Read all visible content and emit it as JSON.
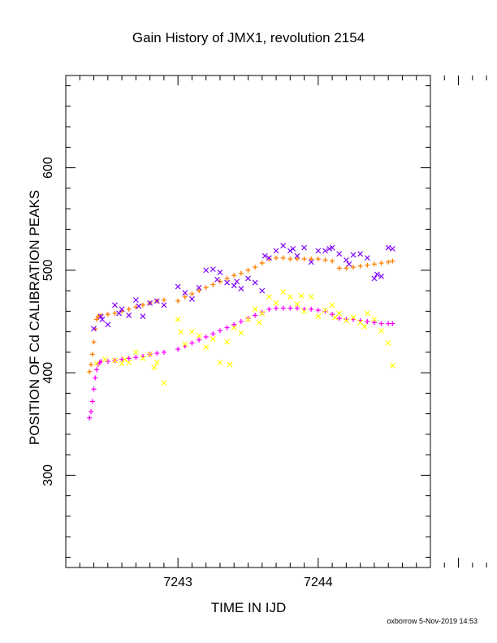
{
  "chart_data": {
    "type": "scatter",
    "title": "Gain History of JMX1, revolution 2154",
    "xlabel": "TIME IN IJD",
    "ylabel": "POSITION OF Cd CALIBRATION PEAKS",
    "xlim": [
      7242.2,
      7244.8
    ],
    "ylim": [
      210,
      690
    ],
    "x_ticks": [
      7243,
      7244
    ],
    "x_tick_labels": [
      "7243",
      "7244"
    ],
    "y_ticks": [
      300,
      400,
      500,
      600
    ],
    "y_tick_labels": [
      "300",
      "400",
      "500",
      "600"
    ],
    "grid": false,
    "legend": "none",
    "footer": "oxborrow  5-Nov-2019 14:53",
    "series": [
      {
        "color": "#ff7f00",
        "marker": "plus",
        "x": [
          7242.37,
          7242.38,
          7242.39,
          7242.4,
          7242.41,
          7242.42,
          7242.43,
          7242.45,
          7242.5,
          7242.55,
          7242.6,
          7242.65,
          7242.7,
          7242.75,
          7242.8,
          7242.85,
          7242.9,
          7243.0,
          7243.05,
          7243.1,
          7243.15,
          7243.2,
          7243.25,
          7243.3,
          7243.35,
          7243.4,
          7243.45,
          7243.5,
          7243.55,
          7243.6,
          7243.65,
          7243.7,
          7243.75,
          7243.8,
          7243.85,
          7243.9,
          7243.95,
          7244.0,
          7244.05,
          7244.1,
          7244.15,
          7244.2,
          7244.25,
          7244.3,
          7244.35,
          7244.4,
          7244.45,
          7244.5,
          7244.53
        ],
        "y": [
          401,
          408,
          418,
          430,
          443,
          452,
          455,
          456,
          457,
          458,
          460,
          462,
          464,
          466,
          468,
          470,
          471,
          470,
          474,
          477,
          480,
          483,
          486,
          489,
          492,
          495,
          497,
          500,
          503,
          507,
          511,
          512,
          512,
          511,
          511,
          511,
          511,
          511,
          510,
          509,
          502,
          502,
          503,
          504,
          505,
          506,
          507,
          508,
          509
        ]
      },
      {
        "color": "#ff00ff",
        "marker": "plus",
        "x": [
          7242.37,
          7242.38,
          7242.39,
          7242.4,
          7242.41,
          7242.42,
          7242.43,
          7242.44,
          7242.45,
          7242.5,
          7242.55,
          7242.6,
          7242.65,
          7242.7,
          7242.75,
          7242.8,
          7242.85,
          7242.9,
          7243.0,
          7243.05,
          7243.1,
          7243.15,
          7243.2,
          7243.25,
          7243.3,
          7243.35,
          7243.4,
          7243.45,
          7243.5,
          7243.55,
          7243.6,
          7243.65,
          7243.7,
          7243.75,
          7243.8,
          7243.85,
          7243.9,
          7243.95,
          7244.0,
          7244.05,
          7244.1,
          7244.15,
          7244.2,
          7244.25,
          7244.3,
          7244.35,
          7244.4,
          7244.45,
          7244.5,
          7244.53
        ],
        "y": [
          356,
          362,
          372,
          384,
          395,
          403,
          408,
          410,
          411,
          411,
          412,
          413,
          414,
          415,
          416,
          418,
          419,
          420,
          423,
          426,
          429,
          432,
          435,
          438,
          441,
          444,
          447,
          450,
          453,
          456,
          459,
          462,
          463,
          463,
          463,
          463,
          462,
          462,
          461,
          460,
          457,
          453,
          452,
          452,
          451,
          450,
          449,
          448,
          448,
          448
        ]
      },
      {
        "color": "#7f00ff",
        "marker": "cross",
        "x": [
          7242.4,
          7242.45,
          7242.5,
          7242.55,
          7242.6,
          7242.65,
          7242.7,
          7242.75,
          7242.8,
          7242.85,
          7242.9,
          7243.0,
          7243.05,
          7243.1,
          7243.15,
          7243.2,
          7243.25,
          7243.3,
          7243.35,
          7243.4,
          7243.45,
          7243.5,
          7243.55,
          7243.6,
          7243.65,
          7243.7,
          7243.75,
          7243.8,
          7243.85,
          7243.9,
          7243.95,
          7244.0,
          7244.05,
          7244.1,
          7244.15,
          7244.2,
          7244.25,
          7244.3,
          7244.35,
          7244.4,
          7244.45,
          7244.5,
          7244.53,
          7242.46,
          7242.58,
          7242.72,
          7243.28,
          7243.42,
          7243.62,
          7243.82,
          7244.08,
          7244.22,
          7244.42
        ],
        "y": [
          443,
          455,
          447,
          466,
          462,
          456,
          471,
          455,
          468,
          470,
          466,
          484,
          478,
          472,
          483,
          500,
          501,
          498,
          488,
          485,
          482,
          492,
          488,
          480,
          512,
          519,
          524,
          519,
          514,
          522,
          508,
          519,
          519,
          522,
          516,
          510,
          515,
          516,
          512,
          492,
          494,
          522,
          521,
          452,
          458,
          465,
          491,
          489,
          514,
          521,
          521,
          506,
          496
        ]
      },
      {
        "color": "#ffff00",
        "marker": "cross",
        "x": [
          7242.42,
          7242.48,
          7242.55,
          7242.6,
          7242.65,
          7242.7,
          7242.75,
          7242.8,
          7242.85,
          7242.9,
          7243.0,
          7243.05,
          7243.1,
          7243.15,
          7243.2,
          7243.25,
          7243.3,
          7243.35,
          7243.4,
          7243.45,
          7243.5,
          7243.55,
          7243.6,
          7243.65,
          7243.7,
          7243.75,
          7243.8,
          7243.85,
          7243.9,
          7243.95,
          7244.0,
          7244.05,
          7244.1,
          7244.15,
          7244.2,
          7244.25,
          7244.3,
          7244.35,
          7244.4,
          7244.45,
          7244.5,
          7244.53,
          7242.62,
          7242.83,
          7243.02,
          7243.37,
          7243.58,
          7243.88,
          7244.12,
          7244.33
        ],
        "y": [
          409,
          413,
          412,
          409,
          410,
          420,
          414,
          418,
          410,
          390,
          452,
          428,
          440,
          436,
          425,
          433,
          410,
          430,
          444,
          439,
          452,
          462,
          458,
          474,
          468,
          479,
          474,
          467,
          460,
          474,
          455,
          461,
          466,
          458,
          451,
          454,
          449,
          458,
          452,
          441,
          429,
          407,
          413,
          405,
          440,
          408,
          449,
          475,
          454,
          445
        ]
      }
    ]
  }
}
